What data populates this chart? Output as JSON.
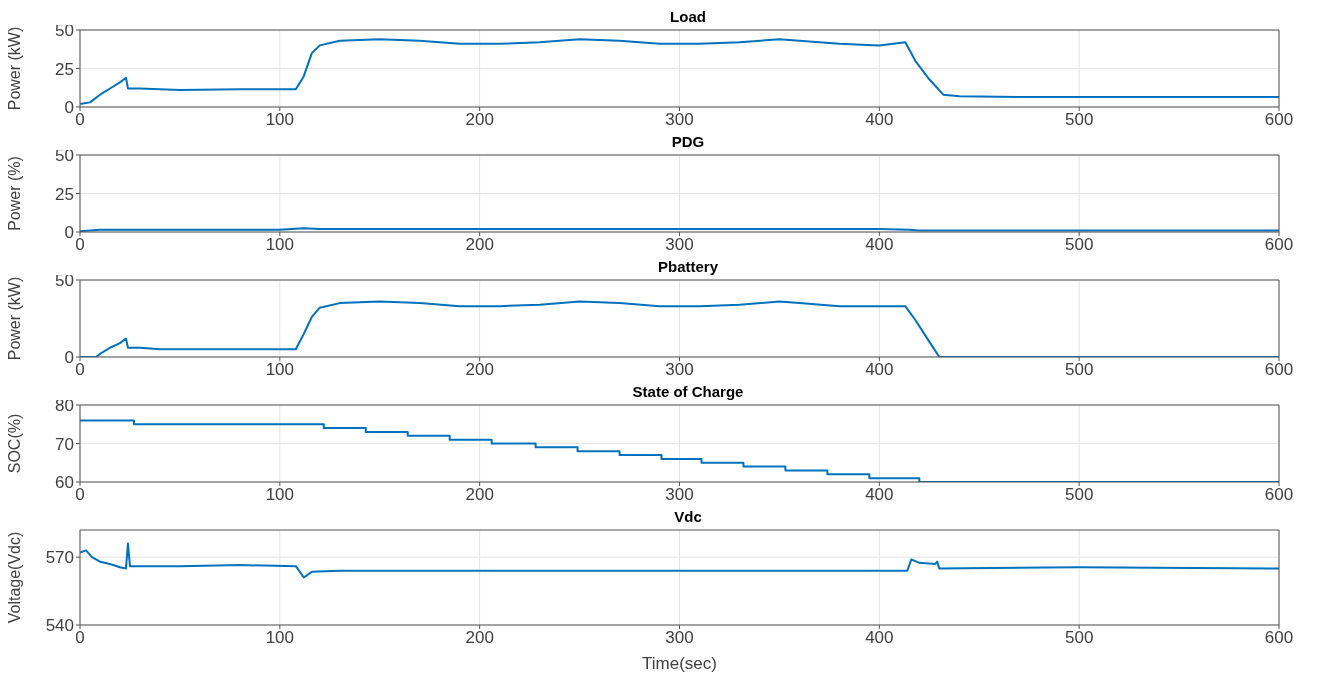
{
  "chart_data": [
    {
      "type": "line",
      "title": "Load",
      "ylabel": "Power (kW)",
      "color": "#0072bd",
      "grid": true,
      "xlim": [
        0,
        600
      ],
      "xticks": [
        0,
        100,
        200,
        300,
        400,
        500,
        600
      ],
      "ylim": [
        0,
        50
      ],
      "yticks": [
        0,
        25,
        50
      ],
      "x": [
        0,
        5,
        10,
        15,
        20,
        23,
        24,
        30,
        50,
        80,
        108,
        112,
        116,
        120,
        130,
        150,
        170,
        190,
        210,
        230,
        250,
        270,
        290,
        310,
        330,
        350,
        360,
        380,
        400,
        413,
        418,
        425,
        432,
        440,
        470,
        500,
        550,
        600
      ],
      "values": [
        2,
        3,
        8,
        12,
        16,
        19,
        12,
        12,
        11,
        11.5,
        11.5,
        20,
        35,
        40,
        43,
        44,
        43,
        41,
        41,
        42,
        44,
        43,
        41,
        41,
        42,
        44,
        43,
        41,
        40,
        42,
        30,
        18,
        8,
        7,
        6.5,
        6.5,
        6.5,
        6.5
      ]
    },
    {
      "type": "line",
      "title": "PDG",
      "ylabel": "Power (%)",
      "color": "#0072bd",
      "grid": true,
      "xlim": [
        0,
        600
      ],
      "xticks": [
        0,
        100,
        200,
        300,
        400,
        500,
        600
      ],
      "ylim": [
        0,
        50
      ],
      "yticks": [
        0,
        25,
        50
      ],
      "x": [
        0,
        10,
        100,
        112,
        120,
        200,
        300,
        400,
        415,
        420,
        500,
        600
      ],
      "values": [
        0.5,
        1.5,
        1.5,
        2.5,
        2,
        2,
        2,
        2,
        1.5,
        1,
        1,
        1
      ]
    },
    {
      "type": "line",
      "title": "Pbattery",
      "ylabel": "Power (kW)",
      "color": "#0072bd",
      "grid": true,
      "xlim": [
        0,
        600
      ],
      "xticks": [
        0,
        100,
        200,
        300,
        400,
        500,
        600
      ],
      "ylim": [
        0,
        50
      ],
      "yticks": [
        0,
        50
      ],
      "x": [
        0,
        8,
        10,
        15,
        20,
        23,
        24,
        30,
        40,
        108,
        112,
        116,
        120,
        130,
        150,
        170,
        190,
        210,
        230,
        250,
        270,
        290,
        310,
        330,
        350,
        360,
        380,
        400,
        413,
        418,
        425,
        430,
        600
      ],
      "values": [
        0,
        0,
        2,
        6,
        9,
        12,
        6,
        6,
        5,
        5,
        15,
        26,
        32,
        35,
        36,
        35,
        33,
        33,
        34,
        36,
        35,
        33,
        33,
        34,
        36,
        35,
        33,
        33,
        33,
        24,
        10,
        0,
        0
      ]
    },
    {
      "type": "step",
      "title": "State of Charge",
      "ylabel": "SOC(%)",
      "color": "#0072bd",
      "grid": true,
      "xlim": [
        0,
        600
      ],
      "xticks": [
        0,
        100,
        200,
        300,
        400,
        500,
        600
      ],
      "ylim": [
        60,
        80
      ],
      "yticks": [
        60,
        70,
        80
      ],
      "x": [
        0,
        27,
        122,
        143,
        164,
        185,
        206,
        228,
        249,
        270,
        291,
        311,
        332,
        353,
        374,
        395,
        420,
        600
      ],
      "values": [
        76,
        75,
        74,
        73,
        72,
        71,
        70,
        69,
        68,
        67,
        66,
        65,
        64,
        63,
        62,
        61,
        60,
        60
      ]
    },
    {
      "type": "line",
      "title": "Vdc",
      "ylabel": "Voltage(Vdc)",
      "xlabel": "Time(sec)",
      "color": "#0072bd",
      "grid": true,
      "xlim": [
        0,
        600
      ],
      "xticks": [
        0,
        100,
        200,
        300,
        400,
        500,
        600
      ],
      "ylim": [
        540,
        582
      ],
      "yticks": [
        540,
        570
      ],
      "x": [
        0,
        3,
        6,
        10,
        15,
        20,
        23,
        24,
        25,
        30,
        50,
        80,
        108,
        112,
        116,
        130,
        200,
        300,
        400,
        414,
        416,
        420,
        428,
        429,
        430,
        500,
        600
      ],
      "values": [
        572,
        573,
        570,
        568,
        567,
        565.5,
        565,
        576,
        566,
        566,
        566,
        566.5,
        566,
        561,
        563.5,
        564,
        564,
        564,
        564,
        564,
        569,
        567.5,
        567,
        568,
        565,
        565.5,
        565
      ]
    }
  ]
}
